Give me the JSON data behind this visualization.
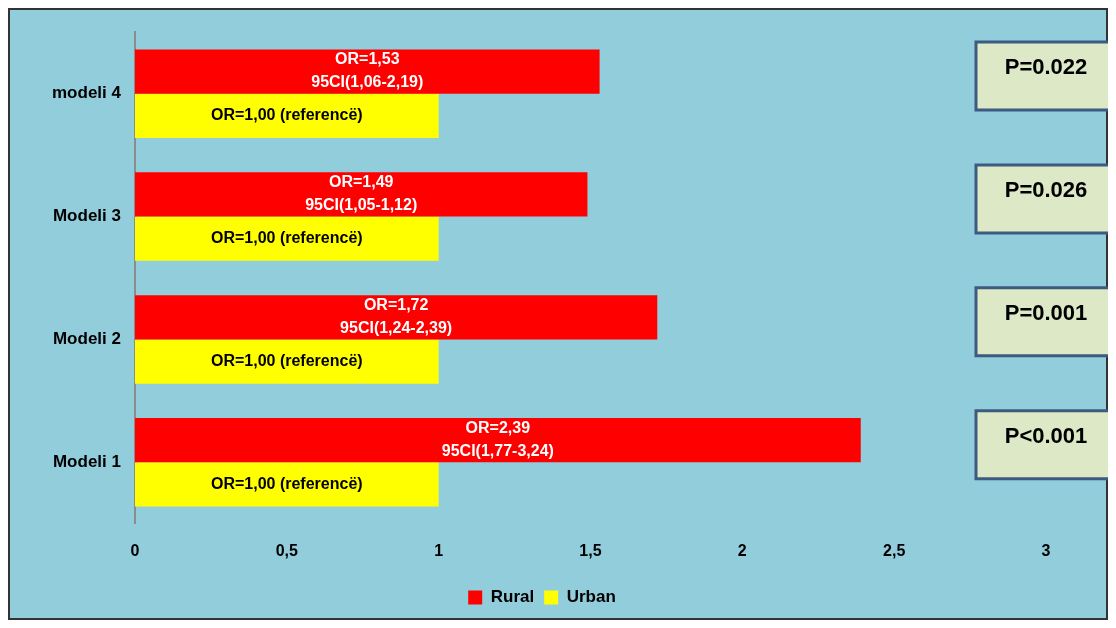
{
  "chart_data": {
    "type": "bar",
    "orientation": "horizontal",
    "categories": [
      "modeli 4",
      "Modeli 3",
      "Modeli 2",
      "Modeli 1"
    ],
    "series": [
      {
        "name": "Rural",
        "color": "#ff0000",
        "values": [
          1.53,
          1.49,
          1.72,
          2.39
        ],
        "value_labels": [
          "OR=1,53\n95CI(1,06-2,19)",
          "OR=1,49\n95CI(1,05-1,12)",
          "OR=1,72\n95CI(1,24-2,39)",
          "OR=2,39\n95CI(1,77-3,24)"
        ]
      },
      {
        "name": "Urban",
        "color": "#ffff00",
        "values": [
          1,
          1,
          1,
          1
        ],
        "value_labels": [
          "OR=1,00 (referencë)",
          "OR=1,00 (referencë)",
          "OR=1,00 (referencë)",
          "OR=1,00 (referencë)"
        ]
      }
    ],
    "xlim": [
      0,
      3
    ],
    "xticks": [
      0,
      {
        "value": 0.5,
        "label": "0,5"
      },
      1,
      {
        "value": 1.5,
        "label": "1,5"
      },
      2,
      {
        "value": 2.5,
        "label": "2,5"
      },
      3
    ],
    "annotations": [
      "P=0.022",
      "P=0.026",
      "P=0.001",
      "P<0.001"
    ],
    "grid": false,
    "legend": "bottom"
  }
}
